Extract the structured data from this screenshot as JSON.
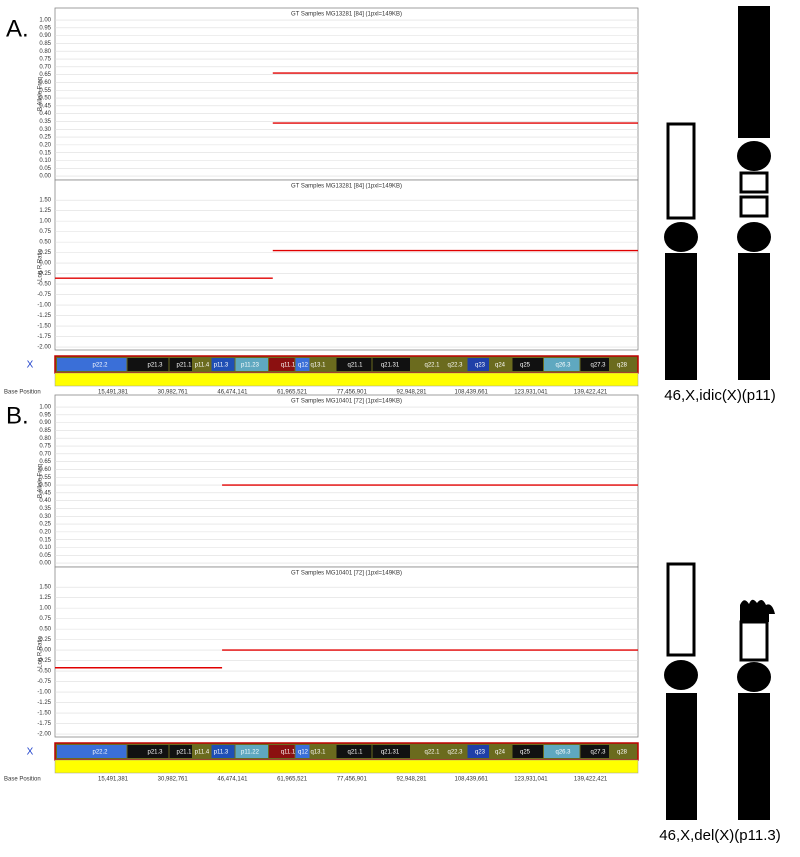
{
  "chart_data": [
    {
      "type": "scatter",
      "title": "GT Samples MG13281 [84]  (1pxl=149KB)",
      "ylabel": "B Allele Freq",
      "xlim": [
        0,
        155270560
      ],
      "ylim": [
        -0.025,
        1.077
      ],
      "grid": true,
      "color": "#e00000",
      "yticks": [
        {
          "value": 1,
          "label": "1.00"
        },
        {
          "value": 0.95,
          "label": "0.95"
        },
        {
          "value": 0.9,
          "label": "0.90"
        },
        {
          "value": 0.85,
          "label": "0.85"
        },
        {
          "value": 0.8,
          "label": "0.80"
        },
        {
          "value": 0.75,
          "label": "0.75"
        },
        {
          "value": 0.7,
          "label": "0.70"
        },
        {
          "value": 0.65,
          "label": "0.65"
        },
        {
          "value": 0.6,
          "label": "0.60"
        },
        {
          "value": 0.55,
          "label": "0.55"
        },
        {
          "value": 0.5,
          "label": "0.50"
        },
        {
          "value": 0.45,
          "label": "0.45"
        },
        {
          "value": 0.4,
          "label": "0.40"
        },
        {
          "value": 0.35,
          "label": "0.35"
        },
        {
          "value": 0.3,
          "label": "0.30"
        },
        {
          "value": 0.25,
          "label": "0.25"
        },
        {
          "value": 0.2,
          "label": "0.20"
        },
        {
          "value": 0.15,
          "label": "0.15"
        },
        {
          "value": 0.1,
          "label": "0.10"
        },
        {
          "value": 0.05,
          "label": "0.05"
        },
        {
          "value": 0,
          "label": "0.00"
        }
      ],
      "segments": [
        {
          "x": [
            58000000,
            155270560
          ],
          "values": [
            0.66,
            0.66
          ]
        },
        {
          "x": [
            58000000,
            155270560
          ],
          "values": [
            0.34,
            0.34
          ]
        }
      ]
    },
    {
      "type": "scatter",
      "title": "GT Samples MG13281 [84]  (1pxl=149KB)",
      "ylabel": "Log R Ratio",
      "xlim": [
        0,
        155270560
      ],
      "ylim": [
        -2.07,
        1.98
      ],
      "grid": true,
      "color": "#e00000",
      "yticks": [
        {
          "value": 1.5,
          "label": "1.50"
        },
        {
          "value": 1.25,
          "label": "1.25"
        },
        {
          "value": 1,
          "label": "1.00"
        },
        {
          "value": 0.75,
          "label": "0.75"
        },
        {
          "value": 0.5,
          "label": "0.50"
        },
        {
          "value": 0.25,
          "label": "0.25"
        },
        {
          "value": 0,
          "label": "0.00"
        },
        {
          "value": -0.25,
          "label": "-0.25"
        },
        {
          "value": -0.5,
          "label": "-0.50"
        },
        {
          "value": -0.75,
          "label": "-0.75"
        },
        {
          "value": -1,
          "label": "-1.00"
        },
        {
          "value": -1.25,
          "label": "-1.25"
        },
        {
          "value": -1.5,
          "label": "-1.50"
        },
        {
          "value": -1.75,
          "label": "-1.75"
        },
        {
          "value": -2,
          "label": "-2.00"
        }
      ],
      "segments": [
        {
          "x": [
            0,
            58000000
          ],
          "values": [
            -0.36,
            -0.36
          ]
        },
        {
          "x": [
            58000000,
            155270560
          ],
          "values": [
            0.3,
            0.3
          ]
        }
      ]
    },
    {
      "type": "scatter",
      "title": "GT Samples MG10401 [72]  (1pxl=149KB)",
      "ylabel": "B Allele Freq",
      "xlim": [
        0,
        155270560
      ],
      "ylim": [
        -0.025,
        1.077
      ],
      "grid": true,
      "color": "#e00000",
      "yticks": [
        {
          "value": 1,
          "label": "1.00"
        },
        {
          "value": 0.95,
          "label": "0.95"
        },
        {
          "value": 0.9,
          "label": "0.90"
        },
        {
          "value": 0.85,
          "label": "0.85"
        },
        {
          "value": 0.8,
          "label": "0.80"
        },
        {
          "value": 0.75,
          "label": "0.75"
        },
        {
          "value": 0.7,
          "label": "0.70"
        },
        {
          "value": 0.65,
          "label": "0.65"
        },
        {
          "value": 0.6,
          "label": "0.60"
        },
        {
          "value": 0.55,
          "label": "0.55"
        },
        {
          "value": 0.5,
          "label": "0.50"
        },
        {
          "value": 0.45,
          "label": "0.45"
        },
        {
          "value": 0.4,
          "label": "0.40"
        },
        {
          "value": 0.35,
          "label": "0.35"
        },
        {
          "value": 0.3,
          "label": "0.30"
        },
        {
          "value": 0.25,
          "label": "0.25"
        },
        {
          "value": 0.2,
          "label": "0.20"
        },
        {
          "value": 0.15,
          "label": "0.15"
        },
        {
          "value": 0.1,
          "label": "0.10"
        },
        {
          "value": 0.05,
          "label": "0.05"
        },
        {
          "value": 0,
          "label": "0.00"
        }
      ],
      "segments": [
        {
          "x": [
            44500000,
            155270560
          ],
          "values": [
            0.5,
            0.5
          ]
        }
      ]
    },
    {
      "type": "scatter",
      "title": "GT Samples MG10401 [72]  (1pxl=149KB)",
      "ylabel": "Log R Ratio",
      "xlim": [
        0,
        155270560
      ],
      "ylim": [
        -2.07,
        1.98
      ],
      "grid": true,
      "color": "#e00000",
      "yticks": [
        {
          "value": 1.5,
          "label": "1.50"
        },
        {
          "value": 1.25,
          "label": "1.25"
        },
        {
          "value": 1,
          "label": "1.00"
        },
        {
          "value": 0.75,
          "label": "0.75"
        },
        {
          "value": 0.5,
          "label": "0.50"
        },
        {
          "value": 0.25,
          "label": "0.25"
        },
        {
          "value": 0,
          "label": "0.00"
        },
        {
          "value": -0.25,
          "label": "-0.25"
        },
        {
          "value": -0.5,
          "label": "-0.50"
        },
        {
          "value": -0.75,
          "label": "-0.75"
        },
        {
          "value": -1,
          "label": "-1.00"
        },
        {
          "value": -1.25,
          "label": "-1.25"
        },
        {
          "value": -1.5,
          "label": "-1.50"
        },
        {
          "value": -1.75,
          "label": "-1.75"
        },
        {
          "value": -2,
          "label": "-2.00"
        }
      ],
      "segments": [
        {
          "x": [
            0,
            44500000
          ],
          "values": [
            -0.42,
            -0.42
          ]
        },
        {
          "x": [
            44500000,
            155270560
          ],
          "values": [
            0,
            0
          ]
        }
      ]
    }
  ],
  "panels": [
    {
      "label": "A.",
      "chromosome": "X",
      "base_position_label": "Base Position",
      "base_positions": [
        "15,491,381",
        "30,982,761",
        "46,474,141",
        "61,965,521",
        "77,456,901",
        "92,948,281",
        "108,439,661",
        "123,931,041",
        "139,422,421"
      ],
      "bands": [
        "p22.2",
        "p21.3",
        "p21.1",
        "p11.4",
        "p11.3",
        "p11.23",
        "q11.1",
        "q12",
        "q13.1",
        "q21.1",
        "q21.31",
        "q22.1",
        "q22.3",
        "q23",
        "q24",
        "q25",
        "q26.3",
        "q27.3",
        "q28"
      ],
      "karyotype_caption": "46,X,idic(X)(p11)"
    },
    {
      "label": "B.",
      "chromosome": "X",
      "base_position_label": "Base Position",
      "base_positions": [
        "15,491,381",
        "30,982,761",
        "46,474,141",
        "61,965,521",
        "77,456,901",
        "92,948,281",
        "108,439,661",
        "123,931,041",
        "139,422,421"
      ],
      "bands": [
        "p22.2",
        "p21.3",
        "p21.1",
        "p11.4",
        "p11.3",
        "p11.22",
        "q11.1",
        "q12",
        "q13.1",
        "q21.1",
        "q21.31",
        "q22.1",
        "q22.3",
        "q23",
        "q24",
        "q25",
        "q26.3",
        "q27.3",
        "q28"
      ],
      "karyotype_caption": "46,X,del(X)(p11.3)"
    }
  ]
}
